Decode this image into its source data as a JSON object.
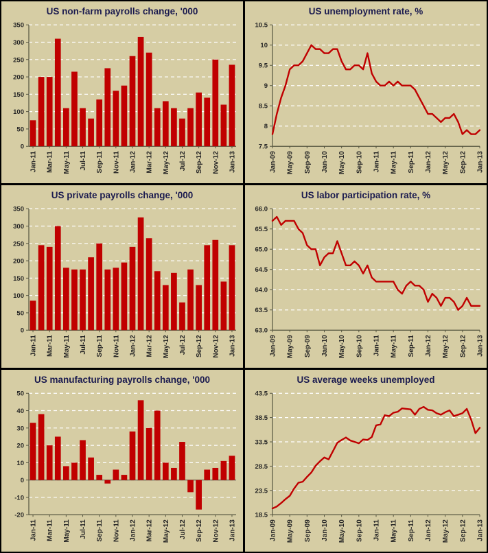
{
  "page": {
    "background": "#000000",
    "panel_background": "#d6cda4"
  },
  "colors": {
    "series": "#c00000",
    "grid": "#ffffff",
    "title": "#1b1b4f",
    "axis_text": "#262626",
    "axis_line": "#55553f"
  },
  "chart_data": [
    {
      "id": "nonfarm-payrolls",
      "type": "bar",
      "title": "US non-farm payrolls change, '000",
      "ylabel": "",
      "xlabel": "",
      "ylim": [
        0,
        350
      ],
      "y_ticks": [
        "0",
        "50",
        "100",
        "150",
        "200",
        "250",
        "300",
        "350"
      ],
      "x_label_step": 2,
      "categories": [
        "Jan-11",
        "Feb-11",
        "Mar-11",
        "Apr-11",
        "May-11",
        "Jun-11",
        "Jul-11",
        "Aug-11",
        "Sep-11",
        "Oct-11",
        "Nov-11",
        "Dec-11",
        "Jan-12",
        "Feb-12",
        "Mar-12",
        "Apr-12",
        "May-12",
        "Jun-12",
        "Jul-12",
        "Aug-12",
        "Sep-12",
        "Oct-12",
        "Nov-12",
        "Dec-12",
        "Jan-13"
      ],
      "values": [
        75,
        200,
        200,
        310,
        110,
        215,
        110,
        80,
        135,
        225,
        160,
        175,
        260,
        315,
        270,
        110,
        130,
        110,
        80,
        110,
        155,
        140,
        250,
        120,
        235
      ]
    },
    {
      "id": "unemployment-rate",
      "type": "line",
      "title": "US unemployment rate, %",
      "ylabel": "",
      "xlabel": "",
      "ylim": [
        7.5,
        10.5
      ],
      "y_ticks": [
        "7.5",
        "8",
        "8.5",
        "9",
        "9.5",
        "10",
        "10.5"
      ],
      "x_label_step": 4,
      "categories": [
        "Jan-09",
        "Feb-09",
        "Mar-09",
        "Apr-09",
        "May-09",
        "Jun-09",
        "Jul-09",
        "Aug-09",
        "Sep-09",
        "Oct-09",
        "Nov-09",
        "Dec-09",
        "Jan-10",
        "Feb-10",
        "Mar-10",
        "Apr-10",
        "May-10",
        "Jun-10",
        "Jul-10",
        "Aug-10",
        "Sep-10",
        "Oct-10",
        "Nov-10",
        "Dec-10",
        "Jan-11",
        "Feb-11",
        "Mar-11",
        "Apr-11",
        "May-11",
        "Jun-11",
        "Jul-11",
        "Aug-11",
        "Sep-11",
        "Oct-11",
        "Nov-11",
        "Dec-11",
        "Jan-12",
        "Feb-12",
        "Mar-12",
        "Apr-12",
        "May-12",
        "Jun-12",
        "Jul-12",
        "Aug-12",
        "Sep-12",
        "Oct-12",
        "Nov-12",
        "Dec-12",
        "Jan-13"
      ],
      "values": [
        7.8,
        8.3,
        8.7,
        9.0,
        9.4,
        9.5,
        9.5,
        9.6,
        9.8,
        10.0,
        9.9,
        9.9,
        9.8,
        9.8,
        9.9,
        9.9,
        9.6,
        9.4,
        9.4,
        9.5,
        9.5,
        9.4,
        9.8,
        9.3,
        9.1,
        9.0,
        9.0,
        9.1,
        9.0,
        9.1,
        9.0,
        9.0,
        9.0,
        8.9,
        8.7,
        8.5,
        8.3,
        8.3,
        8.2,
        8.1,
        8.2,
        8.2,
        8.3,
        8.1,
        7.8,
        7.9,
        7.8,
        7.8,
        7.9
      ]
    },
    {
      "id": "private-payrolls",
      "type": "bar",
      "title": "US private payrolls change, '000",
      "ylabel": "",
      "xlabel": "",
      "ylim": [
        0,
        350
      ],
      "y_ticks": [
        "0",
        "50",
        "100",
        "150",
        "200",
        "250",
        "300",
        "350"
      ],
      "x_label_step": 2,
      "categories": [
        "Jan-11",
        "Feb-11",
        "Mar-11",
        "Apr-11",
        "May-11",
        "Jun-11",
        "Jul-11",
        "Aug-11",
        "Sep-11",
        "Oct-11",
        "Nov-11",
        "Dec-11",
        "Jan-12",
        "Feb-12",
        "Mar-12",
        "Apr-12",
        "May-12",
        "Jun-12",
        "Jul-12",
        "Aug-12",
        "Sep-12",
        "Oct-12",
        "Nov-12",
        "Dec-12",
        "Jan-13"
      ],
      "values": [
        85,
        245,
        240,
        300,
        180,
        175,
        175,
        210,
        250,
        175,
        180,
        195,
        240,
        325,
        265,
        170,
        130,
        165,
        80,
        175,
        130,
        245,
        260,
        140,
        245
      ]
    },
    {
      "id": "labor-participation-rate",
      "type": "line",
      "title": "US labor participation rate, %",
      "ylabel": "",
      "xlabel": "",
      "ylim": [
        63.0,
        66.0
      ],
      "y_ticks": [
        "63.0",
        "63.5",
        "64.0",
        "64.5",
        "65.0",
        "65.5",
        "66.0"
      ],
      "x_label_step": 4,
      "categories": [
        "Jan-09",
        "Feb-09",
        "Mar-09",
        "Apr-09",
        "May-09",
        "Jun-09",
        "Jul-09",
        "Aug-09",
        "Sep-09",
        "Oct-09",
        "Nov-09",
        "Dec-09",
        "Jan-10",
        "Feb-10",
        "Mar-10",
        "Apr-10",
        "May-10",
        "Jun-10",
        "Jul-10",
        "Aug-10",
        "Sep-10",
        "Oct-10",
        "Nov-10",
        "Dec-10",
        "Jan-11",
        "Feb-11",
        "Mar-11",
        "Apr-11",
        "May-11",
        "Jun-11",
        "Jul-11",
        "Aug-11",
        "Sep-11",
        "Oct-11",
        "Nov-11",
        "Dec-11",
        "Jan-12",
        "Feb-12",
        "Mar-12",
        "Apr-12",
        "May-12",
        "Jun-12",
        "Jul-12",
        "Aug-12",
        "Sep-12",
        "Oct-12",
        "Nov-12",
        "Dec-12",
        "Jan-13"
      ],
      "values": [
        65.7,
        65.8,
        65.6,
        65.7,
        65.7,
        65.7,
        65.5,
        65.4,
        65.1,
        65.0,
        65.0,
        64.6,
        64.8,
        64.9,
        64.9,
        65.2,
        64.9,
        64.6,
        64.6,
        64.7,
        64.6,
        64.4,
        64.6,
        64.3,
        64.2,
        64.2,
        64.2,
        64.2,
        64.2,
        64.0,
        63.9,
        64.1,
        64.2,
        64.1,
        64.1,
        64.0,
        63.7,
        63.9,
        63.8,
        63.6,
        63.8,
        63.8,
        63.7,
        63.5,
        63.6,
        63.8,
        63.6,
        63.6,
        63.6
      ]
    },
    {
      "id": "manufacturing-payrolls",
      "type": "bar",
      "title": "US manufacturing payrolls change, '000",
      "ylabel": "",
      "xlabel": "",
      "ylim": [
        -20,
        50
      ],
      "y_ticks": [
        "-20",
        "-10",
        "0",
        "10",
        "20",
        "30",
        "40",
        "50"
      ],
      "x_label_step": 2,
      "categories": [
        "Jan-11",
        "Feb-11",
        "Mar-11",
        "Apr-11",
        "May-11",
        "Jun-11",
        "Jul-11",
        "Aug-11",
        "Sep-11",
        "Oct-11",
        "Nov-11",
        "Dec-11",
        "Jan-12",
        "Feb-12",
        "Mar-12",
        "Apr-12",
        "May-12",
        "Jun-12",
        "Jul-12",
        "Aug-12",
        "Sep-12",
        "Oct-12",
        "Nov-12",
        "Dec-12",
        "Jan-13"
      ],
      "values": [
        33,
        38,
        20,
        25,
        8,
        10,
        23,
        13,
        3,
        -2,
        6,
        3,
        28,
        46,
        30,
        40,
        10,
        7,
        22,
        -7,
        -17,
        6,
        7,
        11,
        14
      ]
    },
    {
      "id": "average-weeks-unemployed",
      "type": "line",
      "title": "US average weeks unemployed",
      "ylabel": "",
      "xlabel": "",
      "ylim": [
        18.5,
        43.5
      ],
      "y_ticks": [
        "18.5",
        "23.5",
        "28.5",
        "33.5",
        "38.5",
        "43.5"
      ],
      "x_label_step": 4,
      "categories": [
        "Jan-09",
        "Feb-09",
        "Mar-09",
        "Apr-09",
        "May-09",
        "Jun-09",
        "Jul-09",
        "Aug-09",
        "Sep-09",
        "Oct-09",
        "Nov-09",
        "Dec-09",
        "Jan-10",
        "Feb-10",
        "Mar-10",
        "Apr-10",
        "May-10",
        "Jun-10",
        "Jul-10",
        "Aug-10",
        "Sep-10",
        "Oct-10",
        "Nov-10",
        "Dec-10",
        "Jan-11",
        "Feb-11",
        "Mar-11",
        "Apr-11",
        "May-11",
        "Jun-11",
        "Jul-11",
        "Aug-11",
        "Sep-11",
        "Oct-11",
        "Nov-11",
        "Dec-11",
        "Jan-12",
        "Feb-12",
        "Mar-12",
        "Apr-12",
        "May-12",
        "Jun-12",
        "Jul-12",
        "Aug-12",
        "Sep-12",
        "Oct-12",
        "Nov-12",
        "Dec-12",
        "Jan-13"
      ],
      "values": [
        19.8,
        20.2,
        20.9,
        21.7,
        22.4,
        23.9,
        25.1,
        25.3,
        26.3,
        27.2,
        28.6,
        29.5,
        30.3,
        29.9,
        31.6,
        33.3,
        33.9,
        34.4,
        33.8,
        33.5,
        33.2,
        34.0,
        33.9,
        34.5,
        36.9,
        37.1,
        39.0,
        38.8,
        39.5,
        39.7,
        40.4,
        40.3,
        40.2,
        39.1,
        40.3,
        40.7,
        40.1,
        40.0,
        39.4,
        39.1,
        39.6,
        40.0,
        38.8,
        39.1,
        39.4,
        40.3,
        38.1,
        35.3,
        36.4
      ]
    }
  ]
}
